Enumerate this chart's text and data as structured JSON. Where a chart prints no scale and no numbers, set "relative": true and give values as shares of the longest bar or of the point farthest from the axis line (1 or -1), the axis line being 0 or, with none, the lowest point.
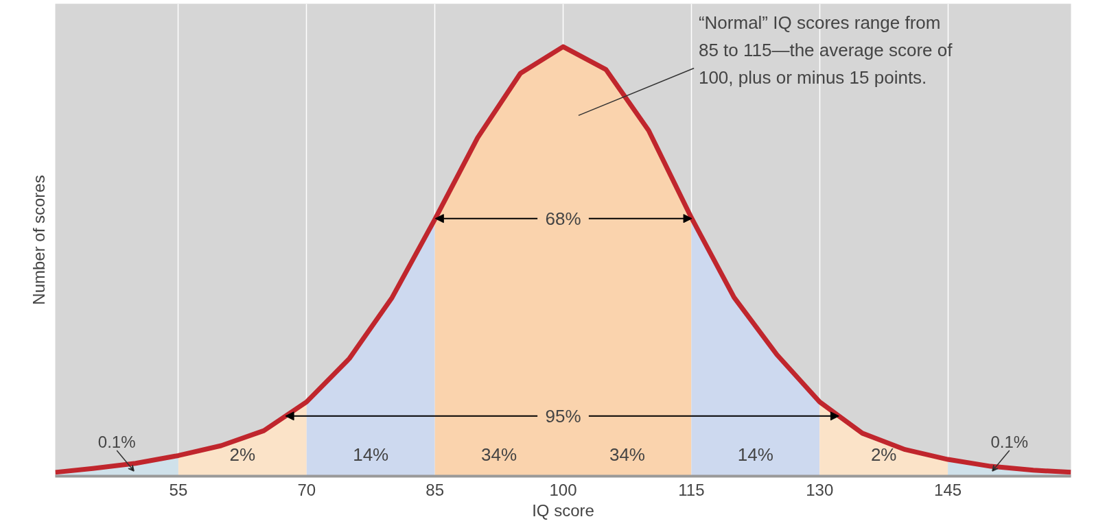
{
  "chart_data": {
    "type": "area",
    "relative": true,
    "xlabel": "IQ score",
    "ylabel": "Number of scores",
    "x": [
      40.6,
      45,
      50,
      55,
      60,
      65,
      70,
      75,
      80,
      85,
      90,
      95,
      100,
      105,
      110,
      115,
      120,
      125,
      130,
      135,
      140,
      145,
      150,
      155,
      159.4
    ],
    "xlim": [
      40.6,
      159.4
    ],
    "xticks": [
      55,
      70,
      85,
      100,
      115,
      130,
      145
    ],
    "grid": "x",
    "series": [
      {
        "color": "#cfe1ea",
        "x": [
          40.6,
          45,
          50,
          55
        ],
        "values": [
          0.009,
          0.018,
          0.03,
          0.048
        ]
      },
      {
        "color": "#fbe3c8",
        "x": [
          55,
          60,
          65,
          70
        ],
        "values": [
          0.048,
          0.071,
          0.106,
          0.173
        ]
      },
      {
        "color": "#cdd9ef",
        "x": [
          70,
          75,
          80,
          85
        ],
        "values": [
          0.173,
          0.274,
          0.416,
          0.598
        ]
      },
      {
        "color": "#fad3ad",
        "x": [
          85,
          90,
          95,
          100,
          105,
          110,
          115
        ],
        "values": [
          0.598,
          0.788,
          0.938,
          1.0,
          0.947,
          0.805,
          0.602
        ]
      },
      {
        "color": "#cdd9ef",
        "x": [
          115,
          120,
          125,
          130
        ],
        "values": [
          0.602,
          0.416,
          0.283,
          0.173
        ]
      },
      {
        "color": "#fbe3c8",
        "x": [
          130,
          135,
          140,
          145
        ],
        "values": [
          0.173,
          0.1,
          0.062,
          0.039
        ]
      },
      {
        "color": "#cfe1ea",
        "x": [
          145,
          150,
          155,
          159.4
        ],
        "values": [
          0.039,
          0.023,
          0.014,
          0.009
        ]
      },
      {
        "type": "line",
        "color": "#c0262d",
        "values": [
          0.009,
          0.018,
          0.03,
          0.048,
          0.071,
          0.106,
          0.173,
          0.274,
          0.416,
          0.598,
          0.788,
          0.938,
          1.0,
          0.947,
          0.805,
          0.602,
          0.416,
          0.283,
          0.173,
          0.1,
          0.062,
          0.039,
          0.023,
          0.014,
          0.009
        ]
      }
    ],
    "annotations": [
      "“Normal” IQ scores range from 85 to 115—the average score of 100, plus or minus 15 points.",
      "68%",
      "95%",
      "0.1%",
      "2%",
      "14%",
      "34%",
      "34%",
      "14%",
      "2%",
      "0.1%"
    ]
  }
}
